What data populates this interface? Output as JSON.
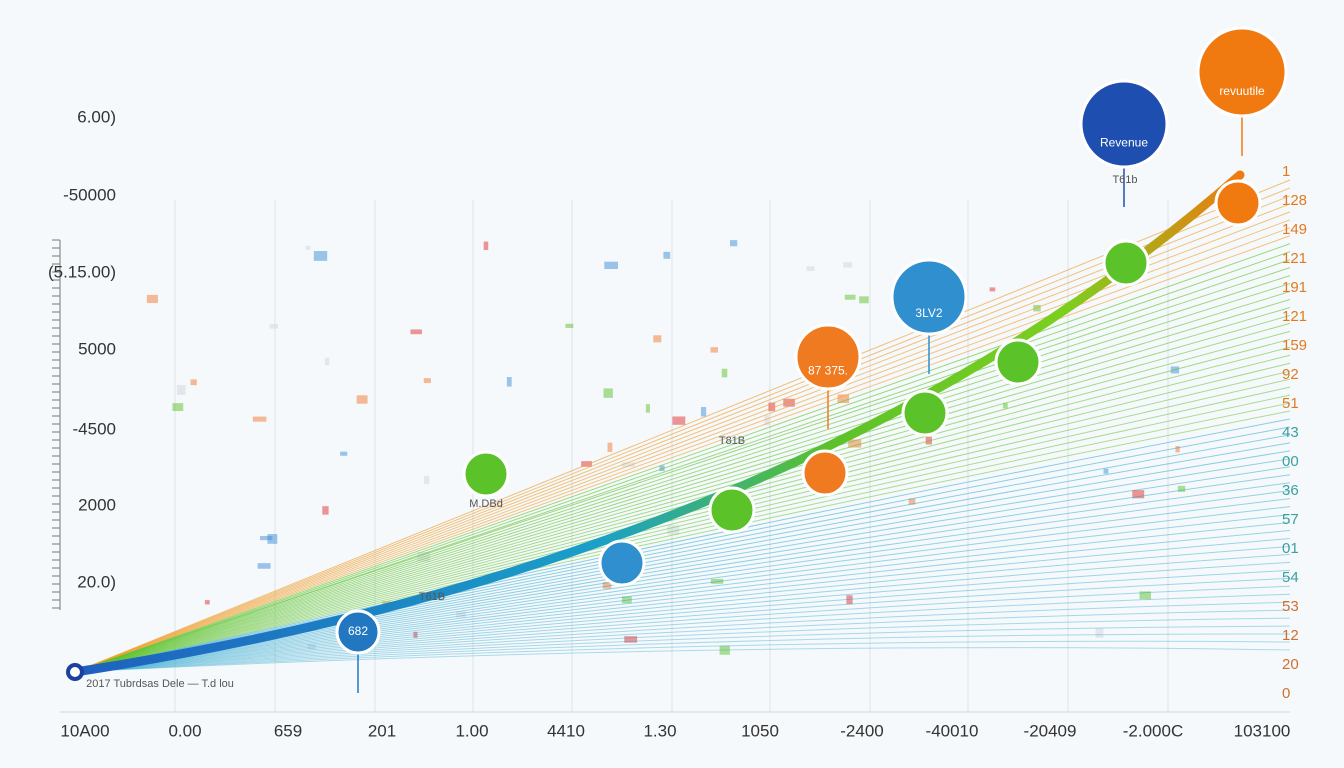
{
  "y_axis_labels": [
    "6.00)",
    "-50000",
    "(5.15.00)",
    "5000",
    "-4500",
    "2000",
    "20.0)"
  ],
  "x_axis_labels": [
    "10A00",
    "0.00",
    "659",
    "201",
    "1.00",
    "4410",
    "1.30",
    "1050",
    "-2400",
    "-40010",
    "-20409",
    "-2.000C",
    "103100"
  ],
  "right_labels": [
    "1",
    "128",
    "149",
    "121",
    "191",
    "121",
    "159",
    "92",
    "51",
    "43",
    "00",
    "36",
    "57",
    "01",
    "54",
    "53",
    "12",
    "20",
    "0"
  ],
  "badges": [
    {
      "label": "revuutile"
    },
    {
      "label": "Revenue"
    },
    {
      "label": "3LV2"
    },
    {
      "label": "87 375."
    },
    {
      "label": "682"
    }
  ],
  "annotations": [
    "T61b",
    "T81B",
    "M.DBd",
    "T61B",
    "2017 Tubrdsas Dele — T.d lou"
  ]
}
